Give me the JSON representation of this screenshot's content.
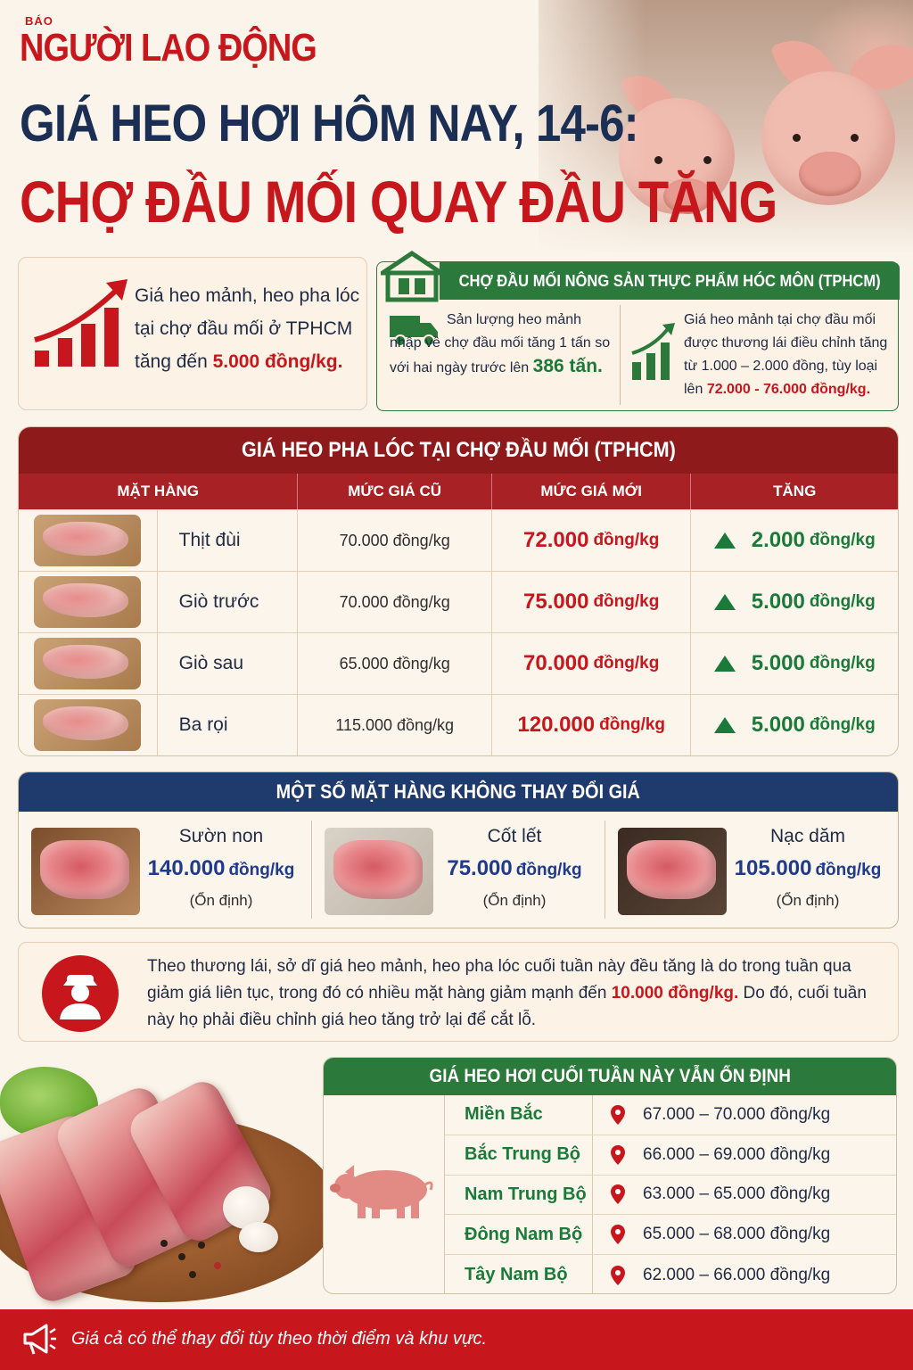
{
  "brand": {
    "small": "BÁO",
    "name": "NGƯỜI LAO ĐỘNG"
  },
  "title": {
    "line1": "GIÁ HEO HƠI HÔM NAY, 14-6:",
    "line2": "CHỢ ĐẦU MỐI QUAY ĐẦU TĂNG"
  },
  "summary": {
    "text": "Giá heo mảnh, heo pha lóc tại chợ đầu mối ở TPHCM tăng đến",
    "highlight": "5.000 đồng/kg."
  },
  "market": {
    "title": "CHỢ ĐẦU MỐI NÔNG SẢN THỰC PHẨM HÓC MÔN (TPHCM)",
    "left_text": "Sản lượng heo mảnh nhập về chợ đầu mối tăng 1 tấn so với hai ngày trước lên",
    "left_value": "386 tấn.",
    "right_text": "Giá heo mảnh tại chợ đầu mối được thương lái điều chỉnh tăng từ 1.000 – 2.000 đồng, tùy loại lên",
    "right_value": "72.000 - 76.000 đồng/kg."
  },
  "pha_loc": {
    "title": "GIÁ HEO PHA LÓC TẠI CHỢ ĐẦU MỐI (TPHCM)",
    "headers": [
      "MẶT HÀNG",
      "MỨC GIÁ CŨ",
      "MỨC GIÁ MỚI",
      "TĂNG"
    ],
    "rows": [
      {
        "name": "Thịt đùi",
        "old": "70.000 đồng/kg",
        "new_value": "72.000",
        "new_unit": "đồng/kg",
        "inc_value": "2.000",
        "inc_unit": "đồng/kg"
      },
      {
        "name": "Giò trước",
        "old": "70.000 đồng/kg",
        "new_value": "75.000",
        "new_unit": "đồng/kg",
        "inc_value": "5.000",
        "inc_unit": "đồng/kg"
      },
      {
        "name": "Giò sau",
        "old": "65.000 đồng/kg",
        "new_value": "70.000",
        "new_unit": "đồng/kg",
        "inc_value": "5.000",
        "inc_unit": "đồng/kg"
      },
      {
        "name": "Ba rọi",
        "old": "115.000 đồng/kg",
        "new_value": "120.000",
        "new_unit": "đồng/kg",
        "inc_value": "5.000",
        "inc_unit": "đồng/kg"
      }
    ]
  },
  "unchanged": {
    "title": "MỘT SỐ MẶT HÀNG KHÔNG THAY ĐỔI GIÁ",
    "items": [
      {
        "name": "Sườn non",
        "value": "140.000",
        "unit": "đồng/kg",
        "status": "(Ổn định)"
      },
      {
        "name": "Cốt lết",
        "value": "75.000",
        "unit": "đồng/kg",
        "status": "(Ổn định)"
      },
      {
        "name": "Nạc dăm",
        "value": "105.000",
        "unit": "đồng/kg",
        "status": "(Ổn định)"
      }
    ]
  },
  "quote": {
    "text_before": "Theo thương lái, sở dĩ giá heo mảnh, heo pha lóc cuối tuần này đều tăng là do trong tuần qua giảm giá liên tục, trong đó có nhiều mặt hàng giảm mạnh đến",
    "highlight": "10.000 đồng/kg.",
    "text_after": "Do đó, cuối tuần này họ phải điều chỉnh giá heo tăng trở lại để cắt lỗ."
  },
  "regions": {
    "title": "GIÁ HEO HƠI CUỐI TUẦN NÀY VẪN ỔN ĐỊNH",
    "rows": [
      {
        "name": "Miền Bắc",
        "price": "67.000 – 70.000 đồng/kg"
      },
      {
        "name": "Bắc Trung Bộ",
        "price": "66.000 – 69.000 đồng/kg"
      },
      {
        "name": "Nam Trung Bộ",
        "price": "63.000 – 65.000 đồng/kg"
      },
      {
        "name": "Đông Nam Bộ",
        "price": "65.000 – 68.000 đồng/kg"
      },
      {
        "name": "Tây Nam Bộ",
        "price": "62.000 – 66.000 đồng/kg"
      }
    ]
  },
  "footer": {
    "text": "Giá cả có thể thay đổi tùy theo thời điểm và khu vực."
  },
  "colors": {
    "brand_red": "#c8161d",
    "navy": "#1b2f55",
    "green": "#2b7a3b",
    "maroon": "#8e1a1c"
  }
}
